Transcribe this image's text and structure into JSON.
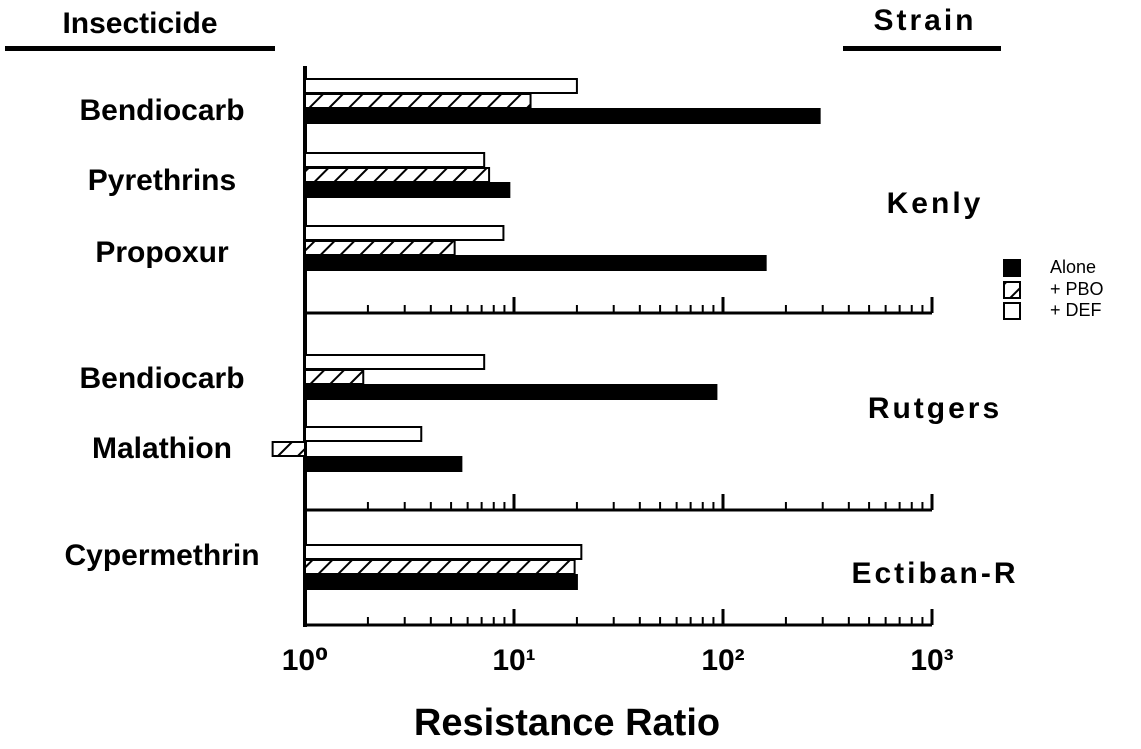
{
  "chart_data": {
    "type": "bar",
    "category_header": "Insecticide",
    "group_header": "Strain",
    "xlabel": "Resistance Ratio",
    "xscale": "log",
    "xlim": [
      1,
      1000
    ],
    "xticks": [
      {
        "value": 1,
        "label": "10⁰"
      },
      {
        "value": 10,
        "label": "10¹"
      },
      {
        "value": 100,
        "label": "10²"
      },
      {
        "value": 1000,
        "label": "10³"
      }
    ],
    "legend": "right",
    "series": [
      {
        "name": "Alone",
        "color": "#000000",
        "pattern": "solid"
      },
      {
        "name": "+ PBO",
        "color": "#000000",
        "pattern": "hatch"
      },
      {
        "name": "+ DEF",
        "color": "#ffffff",
        "pattern": "open"
      }
    ],
    "groups": [
      {
        "name": "Kenly",
        "categories": [
          "Bendiocarb",
          "Pyrethrins",
          "Propoxur"
        ],
        "series": [
          {
            "values": [
              290,
              9.5,
              160
            ]
          },
          {
            "values": [
              12,
              7.6,
              5.2
            ]
          },
          {
            "values": [
              20,
              7.2,
              8.9
            ]
          }
        ]
      },
      {
        "name": "Rutgers",
        "categories": [
          "Bendiocarb",
          "Malathion"
        ],
        "series": [
          {
            "values": [
              93,
              5.6
            ]
          },
          {
            "values": [
              1.9,
              0.7
            ]
          },
          {
            "values": [
              7.2,
              3.6
            ]
          }
        ]
      },
      {
        "name": "Ectiban-R",
        "categories": [
          "Cypermethrin"
        ],
        "series": [
          {
            "values": [
              20
            ]
          },
          {
            "values": [
              19.5
            ]
          },
          {
            "values": [
              21
            ]
          }
        ]
      }
    ]
  }
}
